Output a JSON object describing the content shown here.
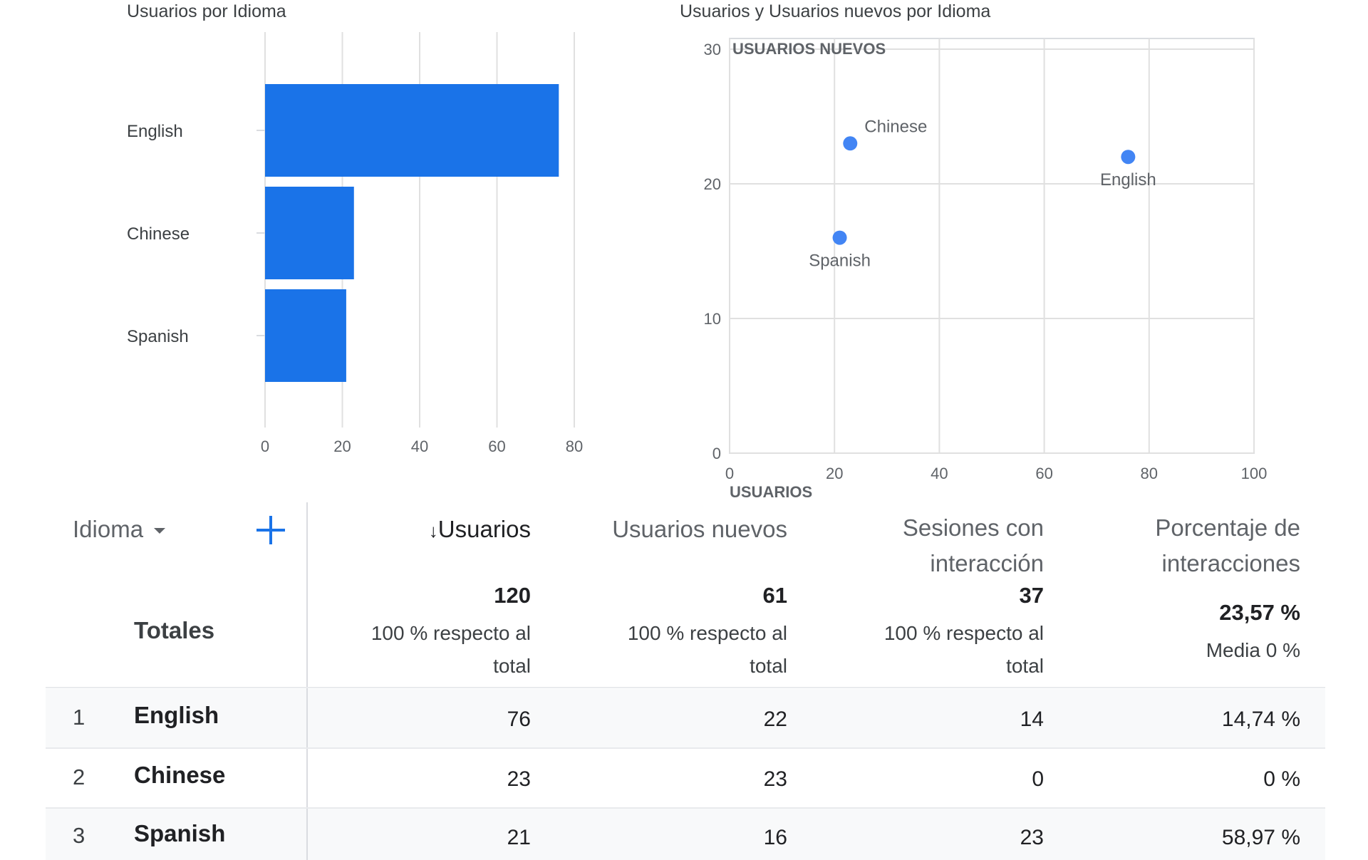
{
  "chart_data": [
    {
      "type": "bar",
      "orientation": "horizontal",
      "title": "Usuarios por Idioma",
      "categories": [
        "English",
        "Chinese",
        "Spanish"
      ],
      "values": [
        76,
        23,
        21
      ],
      "xlim": [
        0,
        80
      ],
      "xticks": [
        "0",
        "20",
        "40",
        "60",
        "80"
      ],
      "grid": true,
      "bar_color": "#1a73e8"
    },
    {
      "type": "scatter",
      "title": "Usuarios y Usuarios nuevos por Idioma",
      "xlabel": "USUARIOS",
      "ylabel": "USUARIOS NUEVOS",
      "xlim": [
        0,
        100
      ],
      "ylim": [
        0,
        30
      ],
      "xticks": [
        "0",
        "20",
        "40",
        "60",
        "80",
        "100"
      ],
      "yticks": [
        "0",
        "10",
        "20",
        "30"
      ],
      "grid": true,
      "point_color": "#4285f4",
      "points": [
        {
          "label": "English",
          "x": 76,
          "y": 22
        },
        {
          "label": "Chinese",
          "x": 23,
          "y": 23
        },
        {
          "label": "Spanish",
          "x": 21,
          "y": 16
        }
      ]
    }
  ],
  "table": {
    "dimension_label": "Idioma",
    "dimension_icon": "caret-down-icon",
    "add_icon": "plus-icon",
    "sort_icon": "arrow-down-icon",
    "columns": [
      {
        "line1": "Usuarios",
        "line2": ""
      },
      {
        "line1": "Usuarios nuevos",
        "line2": ""
      },
      {
        "line1": "Sesiones con",
        "line2": "interacción"
      },
      {
        "line1": "Porcentaje de",
        "line2": "interacciones"
      }
    ],
    "totals": {
      "label": "Totales",
      "cells": [
        {
          "value": "120",
          "sub1": "100 % respecto al",
          "sub2": "total"
        },
        {
          "value": "61",
          "sub1": "100 % respecto al",
          "sub2": "total"
        },
        {
          "value": "37",
          "sub1": "100 % respecto al",
          "sub2": "total"
        },
        {
          "value": "23,57 %",
          "sub1": "Media 0 %",
          "sub2": ""
        }
      ]
    },
    "rows": [
      {
        "index": "1",
        "name": "English",
        "cells": [
          "76",
          "22",
          "14",
          "14,74 %"
        ]
      },
      {
        "index": "2",
        "name": "Chinese",
        "cells": [
          "23",
          "23",
          "0",
          "0 %"
        ]
      },
      {
        "index": "3",
        "name": "Spanish",
        "cells": [
          "21",
          "16",
          "23",
          "58,97 %"
        ]
      }
    ]
  }
}
